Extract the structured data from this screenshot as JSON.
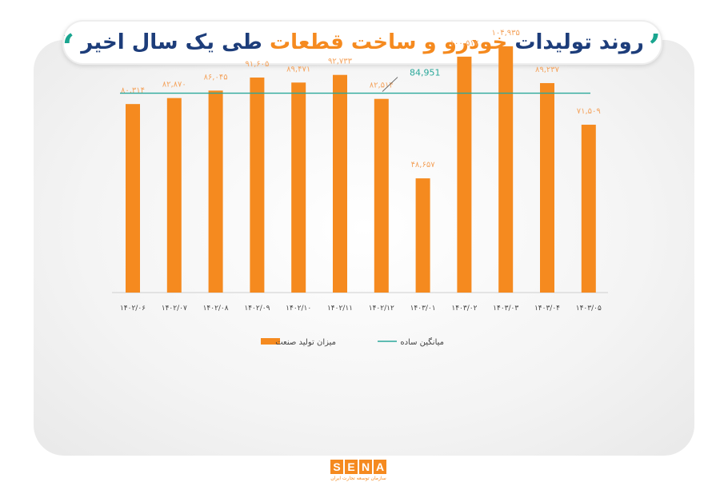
{
  "title": {
    "part1": "روند تولیدات",
    "part2": "خودرو و ساخت قطعات",
    "part3": "طی یک سال اخیر",
    "open_quote": "”",
    "close_quote": "“"
  },
  "colors": {
    "bar": "#f58a1f",
    "line": "#2aa89a",
    "title_blue": "#1d3d7a",
    "accent_orange": "#f58a1f",
    "quote_teal": "#19a58f"
  },
  "chart_data": {
    "type": "bar",
    "categories": [
      "۱۴۰۲/۰۶",
      "۱۴۰۲/۰۷",
      "۱۴۰۲/۰۸",
      "۱۴۰۲/۰۹",
      "۱۴۰۲/۱۰",
      "۱۴۰۲/۱۱",
      "۱۴۰۲/۱۲",
      "۱۴۰۳/۰۱",
      "۱۴۰۳/۰۲",
      "۱۴۰۳/۰۳",
      "۱۴۰۳/۰۴",
      "۱۴۰۳/۰۵"
    ],
    "series": [
      {
        "name": "میزان تولید صنعت",
        "values": [
          80314,
          82870,
          86045,
          91605,
          89471,
          92733,
          82514,
          48657,
          100517,
          104935,
          89237,
          71509
        ],
        "labels": [
          "۸۰,۳۱۴",
          "۸۲,۸۷۰",
          "۸۶,۰۴۵",
          "۹۱,۶۰۵",
          "۸۹,۴۷۱",
          "۹۲,۷۳۳",
          "۸۲,۵۱۴",
          "۴۸,۶۵۷",
          "۱۰۰,۵۱۷",
          "۱۰۴,۹۳۵",
          "۸۹,۲۳۷",
          "۷۱,۵۰۹"
        ]
      }
    ],
    "average": {
      "name": "میانگین ساده",
      "value": 84951,
      "label": "84,951"
    },
    "ylim": [
      0,
      110000
    ],
    "grid": false,
    "legend_position": "bottom"
  },
  "footer": {
    "logo_letters": [
      "S",
      "E",
      "N",
      "A"
    ],
    "logo_subtitle": "سازمان توسعه تجارت ایران"
  }
}
